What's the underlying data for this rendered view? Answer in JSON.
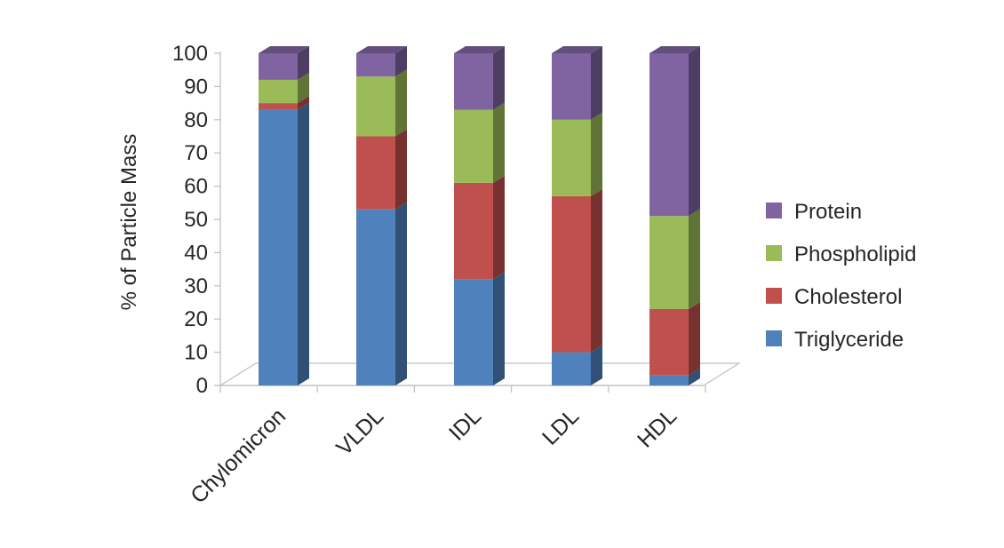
{
  "chart_data": {
    "type": "bar",
    "stacked": true,
    "style": "3d-column",
    "title": "",
    "xlabel": "",
    "ylabel": "% of Particle Mass",
    "ylim": [
      0,
      100
    ],
    "yticks": [
      0,
      10,
      20,
      30,
      40,
      50,
      60,
      70,
      80,
      90,
      100
    ],
    "grid": false,
    "legend_position": "right",
    "categories": [
      "Chylomicron",
      "VLDL",
      "IDL",
      "LDL",
      "HDL"
    ],
    "series": [
      {
        "name": "Triglyceride",
        "color": "#4F81BD",
        "values": [
          83,
          53,
          32,
          10,
          3
        ]
      },
      {
        "name": "Cholesterol",
        "color": "#C0504D",
        "values": [
          2,
          22,
          29,
          47,
          20
        ]
      },
      {
        "name": "Phospholipid",
        "color": "#9BBB59",
        "values": [
          7,
          18,
          22,
          23,
          28
        ]
      },
      {
        "name": "Protein",
        "color": "#8064A2",
        "values": [
          8,
          7,
          17,
          20,
          49
        ]
      }
    ],
    "legend_order": [
      "Protein",
      "Phospholipid",
      "Cholesterol",
      "Triglyceride"
    ]
  }
}
